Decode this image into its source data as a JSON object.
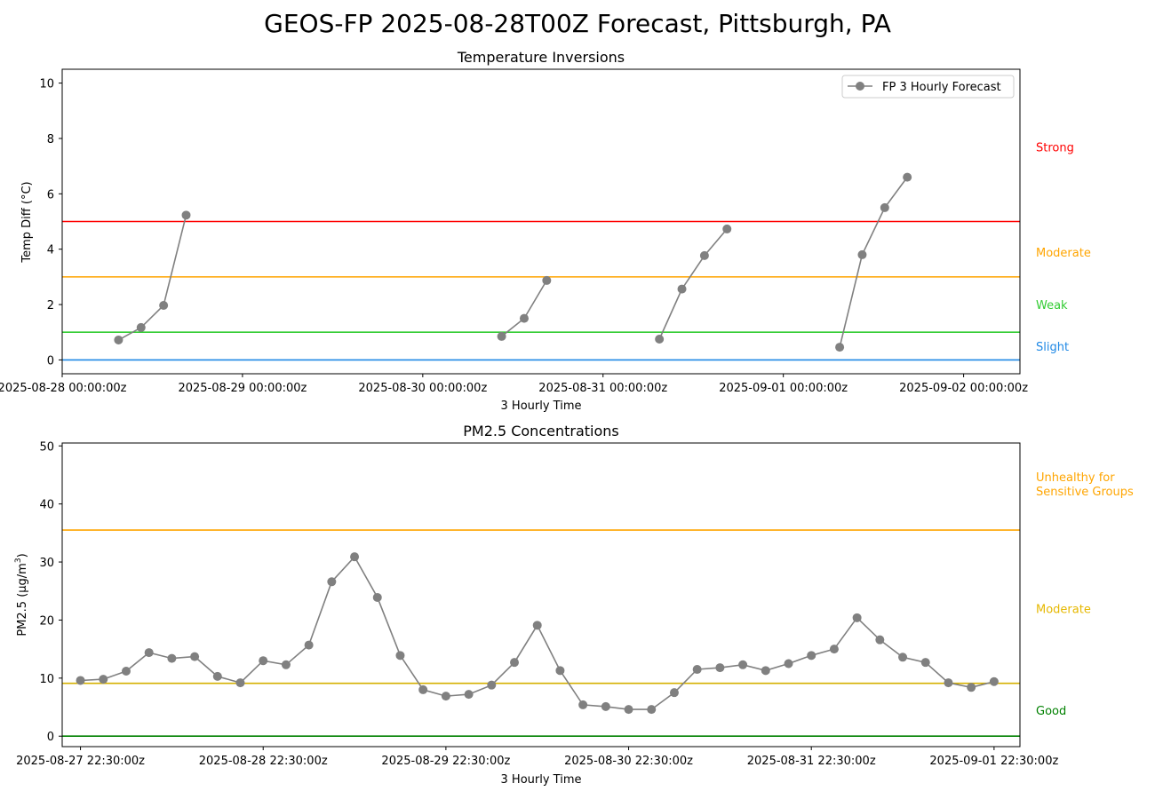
{
  "figure_title": "GEOS-FP 2025-08-28T00Z Forecast, Pittsburgh, PA",
  "chart_data": [
    {
      "type": "line",
      "title": "Temperature Inversions",
      "xlabel": "3 Hourly Time",
      "ylabel": "Temp Diff (°C)",
      "ylim": [
        -0.5,
        10.5
      ],
      "yticks": [
        0,
        2,
        4,
        6,
        8,
        10
      ],
      "xlim_hours": [
        0,
        127.5
      ],
      "xticks": [
        {
          "hour": 0,
          "label": "2025-08-28 00:00:00z"
        },
        {
          "hour": 24,
          "label": "2025-08-29 00:00:00z"
        },
        {
          "hour": 48,
          "label": "2025-08-30 00:00:00z"
        },
        {
          "hour": 72,
          "label": "2025-08-31 00:00:00z"
        },
        {
          "hour": 96,
          "label": "2025-09-01 00:00:00z"
        },
        {
          "hour": 120,
          "label": "2025-09-02 00:00:00z"
        }
      ],
      "legend": {
        "label": "FP 3 Hourly Forecast",
        "placement": "top-right"
      },
      "series": [
        {
          "name": "FP 3 Hourly Forecast",
          "color": "#808080",
          "segments": [
            [
              {
                "hour": 7.5,
                "value": 0.72
              },
              {
                "hour": 10.5,
                "value": 1.17
              },
              {
                "hour": 13.5,
                "value": 1.97
              },
              {
                "hour": 16.5,
                "value": 5.23
              }
            ],
            [
              {
                "hour": 58.5,
                "value": 0.85
              },
              {
                "hour": 61.5,
                "value": 1.5
              },
              {
                "hour": 64.5,
                "value": 2.87
              }
            ],
            [
              {
                "hour": 79.5,
                "value": 0.75
              },
              {
                "hour": 82.5,
                "value": 2.56
              },
              {
                "hour": 85.5,
                "value": 3.77
              },
              {
                "hour": 88.5,
                "value": 4.73
              }
            ],
            [
              {
                "hour": 103.5,
                "value": 0.46
              },
              {
                "hour": 106.5,
                "value": 3.8
              },
              {
                "hour": 109.5,
                "value": 5.5
              },
              {
                "hour": 112.5,
                "value": 6.6
              }
            ]
          ]
        }
      ],
      "thresholds": [
        {
          "value": 0,
          "color": "#1e88e5",
          "label": "Slight",
          "label_value": 0.5
        },
        {
          "value": 1,
          "color": "#33cc33",
          "label": "Weak",
          "label_value": 2.0
        },
        {
          "value": 3,
          "color": "#ffa500",
          "label": "Moderate",
          "label_value": 3.9
        },
        {
          "value": 5,
          "color": "#ff0000",
          "label": "Strong",
          "label_value": 7.7
        }
      ]
    },
    {
      "type": "line",
      "title": "PM2.5 Concentrations",
      "xlabel": "3 Hourly Time",
      "ylabel_main": "PM2.5 (µg/m",
      "ylabel_sup": "3",
      "ylabel_end": ")",
      "ylim": [
        -1.8,
        50.5
      ],
      "yticks": [
        0,
        10,
        20,
        30,
        40,
        50
      ],
      "xlim_hours": [
        -2.4,
        123.4
      ],
      "xticks": [
        {
          "hour": 0,
          "label": "2025-08-27 22:30:00z"
        },
        {
          "hour": 24,
          "label": "2025-08-28 22:30:00z"
        },
        {
          "hour": 48,
          "label": "2025-08-29 22:30:00z"
        },
        {
          "hour": 72,
          "label": "2025-08-30 22:30:00z"
        },
        {
          "hour": 96,
          "label": "2025-08-31 22:30:00z"
        },
        {
          "hour": 120,
          "label": "2025-09-01 22:30:00z"
        }
      ],
      "series": [
        {
          "name": "",
          "color": "#808080",
          "start_hour": 0,
          "step_hours": 3,
          "values": [
            9.6,
            9.8,
            11.2,
            14.4,
            13.4,
            13.7,
            10.3,
            9.2,
            13.0,
            12.3,
            15.7,
            26.6,
            30.9,
            23.9,
            13.9,
            8.0,
            6.9,
            7.2,
            8.8,
            12.7,
            19.1,
            11.3,
            5.4,
            5.1,
            4.6,
            4.6,
            7.5,
            11.5,
            11.8,
            12.3,
            11.3,
            12.5,
            13.9,
            15.0,
            20.4,
            16.6,
            13.6,
            12.7,
            9.2,
            8.4,
            9.4
          ]
        }
      ],
      "thresholds": [
        {
          "value": 0,
          "color": "#008000",
          "label": "Good",
          "label_value": 4.5
        },
        {
          "value": 9.1,
          "color": "#d4b000",
          "label": "",
          "label_value": null
        },
        {
          "value": 35.5,
          "color": "#ffa500",
          "label": "",
          "label_value": null
        }
      ],
      "category_labels": [
        {
          "label": "Moderate",
          "color": "#e6b800",
          "label_value": 22.0
        },
        {
          "label": "Unhealthy for\nSensitive Groups",
          "color": "#ffa500",
          "label_value": 43.5
        }
      ]
    }
  ]
}
